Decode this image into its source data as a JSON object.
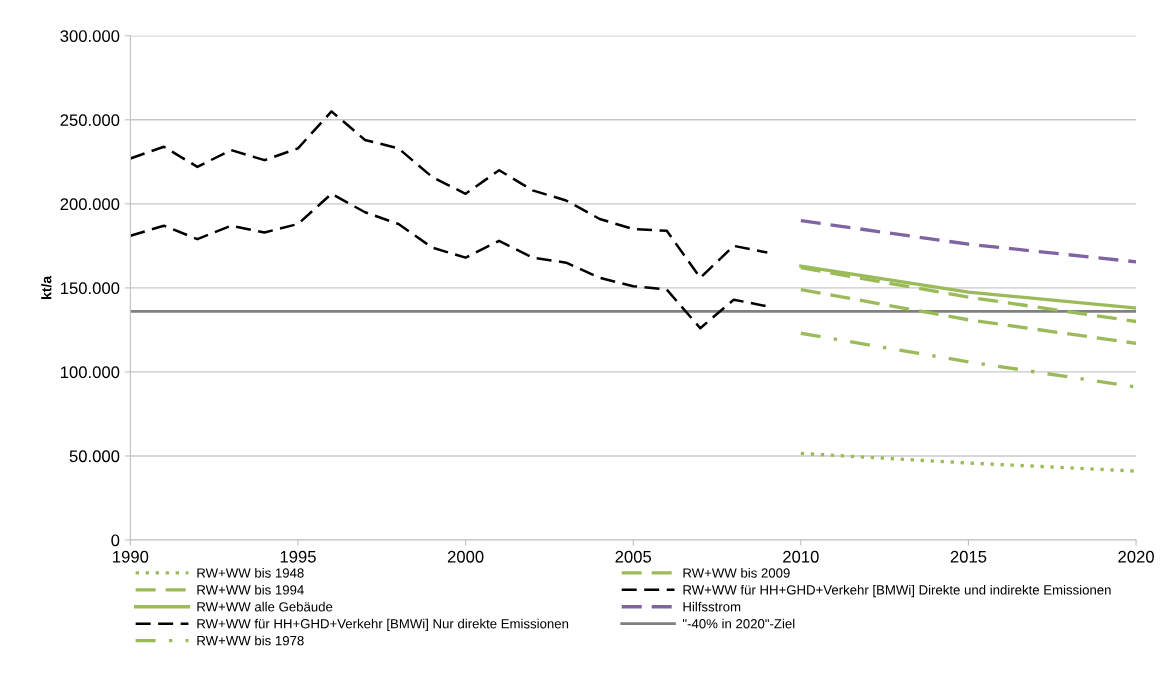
{
  "chart_data": {
    "type": "line",
    "ylabel": "kt/a",
    "xlim": [
      1990,
      2020
    ],
    "xticks": [
      1990,
      1995,
      2000,
      2005,
      2010,
      2015,
      2020
    ],
    "ylim": [
      0,
      300000
    ],
    "yticks": [
      0,
      {
        "value": 50000,
        "label": "50.000"
      },
      {
        "value": 100000,
        "label": "100.000"
      },
      {
        "value": 150000,
        "label": "150.000"
      },
      {
        "value": 200000,
        "label": "200.000"
      },
      {
        "value": 250000,
        "label": "250.000"
      },
      {
        "value": 300000,
        "label": "300.000"
      }
    ],
    "grid": "y",
    "legend": "bottom",
    "marker": "none",
    "series": [
      {
        "name": "RW+WW bis 1948",
        "color": "#9bbb59",
        "line_style": "dotted",
        "x": [
          2010,
          2015,
          2020
        ],
        "values": [
          51500,
          45800,
          41000
        ]
      },
      {
        "name": "RW+WW bis 1994",
        "color": "#9bbb59",
        "line_style": "dashed",
        "x": [
          2010,
          2015,
          2020
        ],
        "values": [
          149000,
          131000,
          117000
        ]
      },
      {
        "name": "RW+WW alle Gebäude",
        "color": "#9bbb59",
        "line_style": "solid",
        "x": [
          2010,
          2015,
          2020
        ],
        "values": [
          163000,
          147500,
          138000
        ]
      },
      {
        "name": "RW+WW für HH+GHD+Verkehr [BMWi] Nur direkte Emissionen",
        "color": "#000000",
        "line_style": "dashed",
        "x": [
          1990,
          1991,
          1992,
          1993,
          1994,
          1995,
          1996,
          1997,
          1998,
          1999,
          2000,
          2001,
          2002,
          2003,
          2004,
          2005,
          2006,
          2007,
          2008,
          2009
        ],
        "values": [
          181000,
          187000,
          179000,
          187000,
          183000,
          188000,
          206000,
          195000,
          188000,
          174000,
          168000,
          178000,
          168000,
          165000,
          156000,
          151000,
          149000,
          126000,
          143000,
          139000
        ]
      },
      {
        "name": "RW+WW bis 1978",
        "color": "#9bbb59",
        "line_style": "dashdot",
        "x": [
          2010,
          2015,
          2020
        ],
        "values": [
          123000,
          106000,
          91000
        ]
      },
      {
        "name": "RW+WW bis 2009",
        "color": "#9bbb59",
        "line_style": "dashed",
        "x": [
          2010,
          2015,
          2020
        ],
        "values": [
          162000,
          144500,
          130000
        ]
      },
      {
        "name": "RW+WW für HH+GHD+Verkehr [BMWi] Direkte und indirekte Emissionen",
        "color": "#000000",
        "line_style": "dashed",
        "x": [
          1990,
          1991,
          1992,
          1993,
          1994,
          1995,
          1996,
          1997,
          1998,
          1999,
          2000,
          2001,
          2002,
          2003,
          2004,
          2005,
          2006,
          2007,
          2008,
          2009
        ],
        "values": [
          227000,
          234000,
          222000,
          232000,
          226000,
          233000,
          255000,
          238000,
          233000,
          216000,
          206000,
          220000,
          208000,
          202000,
          191000,
          185000,
          184000,
          156000,
          175000,
          171000
        ]
      },
      {
        "name": "Hilfsstrom",
        "color": "#8064a2",
        "line_style": "dashed",
        "x": [
          2010,
          2015,
          2020
        ],
        "values": [
          190000,
          176000,
          165500
        ]
      }
    ],
    "ref_lines": [
      {
        "axis": "y",
        "value": 136000,
        "label": "\"-40% in 2020\"-Ziel",
        "color": "#808080",
        "line_style": "solid"
      }
    ]
  }
}
